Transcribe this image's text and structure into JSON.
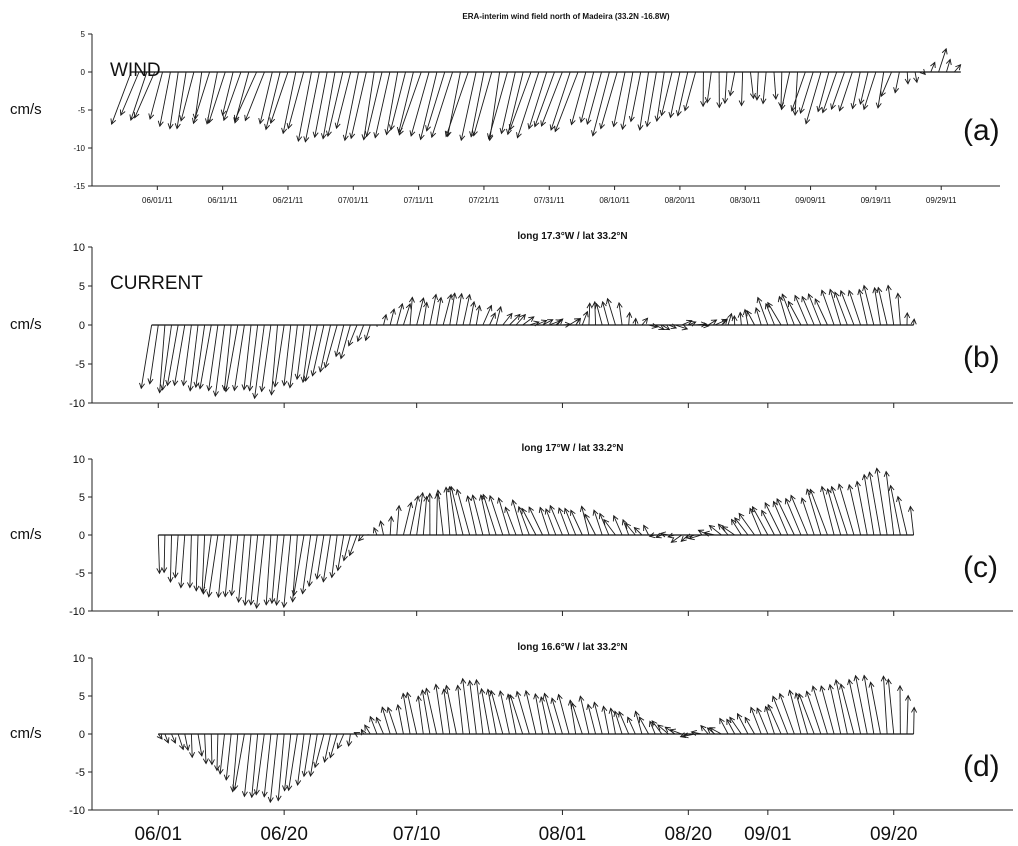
{
  "figure": {
    "xaxis_dates": [
      "06/01",
      "06/20",
      "07/10",
      "08/01",
      "08/20",
      "09/01",
      "09/20"
    ]
  },
  "chart_data": [
    {
      "type": "vector",
      "id": "a",
      "panel_label": "(a)",
      "inset_label": "WIND",
      "title": "ERA-interim wind field north of Madeira (33.2N -16.8W)",
      "ylabel": "cm/s",
      "ylim": [
        -15,
        5
      ],
      "yticks": [
        5,
        0,
        -5,
        -10,
        -15
      ],
      "xlim": [
        "2011-05-22",
        "2011-10-08"
      ],
      "xtick_dates": [
        "2011-06-01",
        "2011-06-11",
        "2011-06-21",
        "2011-07-01",
        "2011-07-11",
        "2011-07-21",
        "2011-07-31",
        "2011-08-10",
        "2011-08-20",
        "2011-08-30",
        "2011-09-09",
        "2011-09-19",
        "2011-09-29"
      ],
      "xtick_labels": [
        "06/01/11",
        "06/11/11",
        "06/21/11",
        "07/01/11",
        "07/11/11",
        "07/21/11",
        "07/31/11",
        "08/10/11",
        "08/20/11",
        "08/30/11",
        "09/09/11",
        "09/19/11",
        "09/29/11"
      ],
      "series_start": "2011-05-28",
      "series_end": "2011-10-02",
      "keypoints": [
        {
          "d": "2011-05-28",
          "u": -3.5,
          "v": -6.5
        },
        {
          "d": "2011-06-06",
          "u": -1.5,
          "v": -7.0
        },
        {
          "d": "2011-06-16",
          "u": -3.0,
          "v": -6.0
        },
        {
          "d": "2011-06-25",
          "u": -2.5,
          "v": -8.5
        },
        {
          "d": "2011-07-04",
          "u": -2.0,
          "v": -8.0
        },
        {
          "d": "2011-07-14",
          "u": -3.0,
          "v": -8.5
        },
        {
          "d": "2011-07-24",
          "u": -2.5,
          "v": -9.0
        },
        {
          "d": "2011-08-03",
          "u": -3.0,
          "v": -7.5
        },
        {
          "d": "2011-08-13",
          "u": -2.0,
          "v": -7.5
        },
        {
          "d": "2011-08-23",
          "u": -1.0,
          "v": -5.0
        },
        {
          "d": "2011-09-01",
          "u": 0.5,
          "v": -3.0
        },
        {
          "d": "2011-09-10",
          "u": -2.0,
          "v": -6.5
        },
        {
          "d": "2011-09-20",
          "u": -1.5,
          "v": -4.0
        },
        {
          "d": "2011-09-26",
          "u": 0.5,
          "v": -0.5
        },
        {
          "d": "2011-09-28",
          "u": 0.5,
          "v": 2.5
        },
        {
          "d": "2011-10-02",
          "u": 0.3,
          "v": 1.0
        }
      ]
    },
    {
      "type": "vector",
      "id": "b",
      "panel_label": "(b)",
      "inset_label": "CURRENT",
      "title": "long 17.3°W / lat 33.2°N",
      "ylabel": "cm/s",
      "ylim": [
        -10,
        10
      ],
      "yticks": [
        10,
        5,
        0,
        -5,
        -10
      ],
      "xlim": [
        "2011-05-22",
        "2011-10-08"
      ],
      "series_start": "2011-05-31",
      "series_end": "2011-09-23",
      "keypoints": [
        {
          "d": "2011-05-31",
          "u": -1.5,
          "v": -8.0
        },
        {
          "d": "2011-06-09",
          "u": -2.0,
          "v": -8.5
        },
        {
          "d": "2011-06-18",
          "u": -1.5,
          "v": -9.0
        },
        {
          "d": "2011-06-27",
          "u": -2.0,
          "v": -6.0
        },
        {
          "d": "2011-07-03",
          "u": -1.0,
          "v": -1.5
        },
        {
          "d": "2011-07-06",
          "u": 1.0,
          "v": 2.5
        },
        {
          "d": "2011-07-16",
          "u": 1.0,
          "v": 4.0
        },
        {
          "d": "2011-07-24",
          "u": 1.5,
          "v": 1.0
        },
        {
          "d": "2011-08-01",
          "u": 2.0,
          "v": 0.5
        },
        {
          "d": "2011-08-08",
          "u": -1.5,
          "v": 3.5
        },
        {
          "d": "2011-08-15",
          "u": 2.0,
          "v": -0.3
        },
        {
          "d": "2011-08-24",
          "u": 2.0,
          "v": 0.5
        },
        {
          "d": "2011-09-01",
          "u": -2.0,
          "v": 3.0
        },
        {
          "d": "2011-09-11",
          "u": -2.5,
          "v": 4.0
        },
        {
          "d": "2011-09-20",
          "u": -1.5,
          "v": 5.0
        },
        {
          "d": "2011-09-23",
          "u": 0.0,
          "v": 0.5
        }
      ]
    },
    {
      "type": "vector",
      "id": "c",
      "panel_label": "(c)",
      "title": "long 17°W / lat 33.2°N",
      "ylabel": "cm/s",
      "ylim": [
        -10,
        10
      ],
      "yticks": [
        10,
        5,
        0,
        -5,
        -10
      ],
      "xlim": [
        "2011-05-22",
        "2011-10-08"
      ],
      "series_start": "2011-06-01",
      "series_end": "2011-09-23",
      "keypoints": [
        {
          "d": "2011-06-01",
          "u": 0.5,
          "v": -5.0
        },
        {
          "d": "2011-06-10",
          "u": -1.5,
          "v": -8.0
        },
        {
          "d": "2011-06-20",
          "u": -1.5,
          "v": -9.5
        },
        {
          "d": "2011-06-28",
          "u": -1.5,
          "v": -5.0
        },
        {
          "d": "2011-07-04",
          "u": -0.5,
          "v": 0.5
        },
        {
          "d": "2011-07-09",
          "u": 1.5,
          "v": 5.5
        },
        {
          "d": "2011-07-17",
          "u": -2.0,
          "v": 6.0
        },
        {
          "d": "2011-07-26",
          "u": -2.5,
          "v": 4.0
        },
        {
          "d": "2011-08-05",
          "u": -2.0,
          "v": 3.5
        },
        {
          "d": "2011-08-13",
          "u": -1.5,
          "v": 1.0
        },
        {
          "d": "2011-08-20",
          "u": -2.0,
          "v": -1.0
        },
        {
          "d": "2011-08-27",
          "u": -2.5,
          "v": 1.5
        },
        {
          "d": "2011-09-04",
          "u": -3.0,
          "v": 4.5
        },
        {
          "d": "2011-09-13",
          "u": -3.0,
          "v": 6.5
        },
        {
          "d": "2011-09-20",
          "u": -2.0,
          "v": 8.5
        },
        {
          "d": "2011-09-23",
          "u": -1.0,
          "v": 4.0
        }
      ]
    },
    {
      "type": "vector",
      "id": "d",
      "panel_label": "(d)",
      "title": "long 16.6°W / lat 33.2°N",
      "ylabel": "cm/s",
      "ylim": [
        -10,
        10
      ],
      "yticks": [
        10,
        5,
        0,
        -5,
        -10
      ],
      "xlim": [
        "2011-05-22",
        "2011-10-08"
      ],
      "series_start": "2011-06-01",
      "series_end": "2011-09-23",
      "keypoints": [
        {
          "d": "2011-06-01",
          "u": 0.5,
          "v": -0.5
        },
        {
          "d": "2011-06-06",
          "u": 0.5,
          "v": -2.5
        },
        {
          "d": "2011-06-13",
          "u": -1.5,
          "v": -7.0
        },
        {
          "d": "2011-06-19",
          "u": -1.0,
          "v": -9.0
        },
        {
          "d": "2011-06-26",
          "u": -1.5,
          "v": -4.5
        },
        {
          "d": "2011-07-02",
          "u": -0.5,
          "v": 0.5
        },
        {
          "d": "2011-07-09",
          "u": -1.5,
          "v": 5.0
        },
        {
          "d": "2011-07-18",
          "u": -1.5,
          "v": 7.0
        },
        {
          "d": "2011-07-27",
          "u": -2.0,
          "v": 5.5
        },
        {
          "d": "2011-08-05",
          "u": -1.5,
          "v": 4.5
        },
        {
          "d": "2011-08-13",
          "u": -1.5,
          "v": 2.5
        },
        {
          "d": "2011-08-20",
          "u": -2.0,
          "v": 0.0
        },
        {
          "d": "2011-08-28",
          "u": -2.0,
          "v": 2.0
        },
        {
          "d": "2011-09-05",
          "u": -2.5,
          "v": 5.0
        },
        {
          "d": "2011-09-13",
          "u": -2.5,
          "v": 7.0
        },
        {
          "d": "2011-09-20",
          "u": -1.0,
          "v": 7.5
        },
        {
          "d": "2011-09-23",
          "u": 0.0,
          "v": 3.0
        }
      ]
    }
  ]
}
